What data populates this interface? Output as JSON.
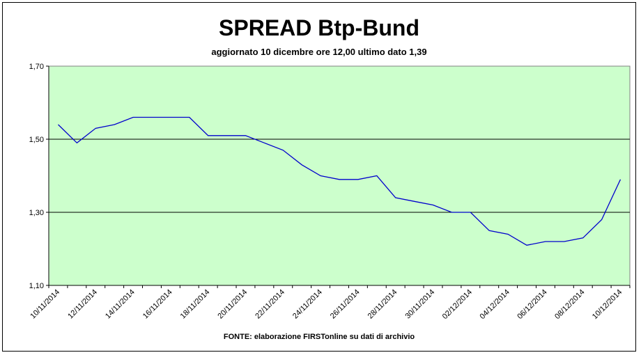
{
  "chart_data": {
    "type": "line",
    "title": "SPREAD Btp-Bund",
    "subtitle": "aggiornato 10 dicembre ore 12,00  ultimo dato  1,39",
    "footer": "FONTE: elaborazione FIRSTonline su dati di archivio",
    "xlabel": "",
    "ylabel": "",
    "ylim": [
      1.1,
      1.7
    ],
    "yticks": [
      "1,10",
      "1,30",
      "1,50",
      "1,70"
    ],
    "ytick_values": [
      1.1,
      1.3,
      1.5,
      1.7
    ],
    "xticks": [
      "10/11/2014",
      "12/11/2014",
      "14/11/2014",
      "16/11/2014",
      "18/11/2014",
      "20/11/2014",
      "22/11/2014",
      "24/11/2014",
      "26/11/2014",
      "28/11/2014",
      "30/11/2014",
      "02/12/2014",
      "04/12/2014",
      "06/12/2014",
      "08/12/2014",
      "10/12/2014"
    ],
    "grid": "horizontal",
    "plot_background": "#ccffcc",
    "line_color": "#0000cc",
    "series": [
      {
        "x": [
          "10/11/2014",
          "11/11/2014",
          "12/11/2014",
          "13/11/2014",
          "14/11/2014",
          "15/11/2014",
          "16/11/2014",
          "17/11/2014",
          "18/11/2014",
          "19/11/2014",
          "20/11/2014",
          "21/11/2014",
          "22/11/2014",
          "23/11/2014",
          "24/11/2014",
          "25/11/2014",
          "26/11/2014",
          "27/11/2014",
          "28/11/2014",
          "29/11/2014",
          "30/11/2014",
          "01/12/2014",
          "02/12/2014",
          "03/12/2014",
          "04/12/2014",
          "05/12/2014",
          "06/12/2014",
          "07/12/2014",
          "08/12/2014",
          "09/12/2014",
          "10/12/2014"
        ],
        "values": [
          1.54,
          1.49,
          1.53,
          1.54,
          1.56,
          1.56,
          1.56,
          1.56,
          1.51,
          1.51,
          1.51,
          1.49,
          1.47,
          1.43,
          1.4,
          1.39,
          1.39,
          1.4,
          1.34,
          1.33,
          1.32,
          1.3,
          1.3,
          1.25,
          1.24,
          1.21,
          1.22,
          1.22,
          1.23,
          1.28,
          1.39
        ]
      }
    ]
  }
}
